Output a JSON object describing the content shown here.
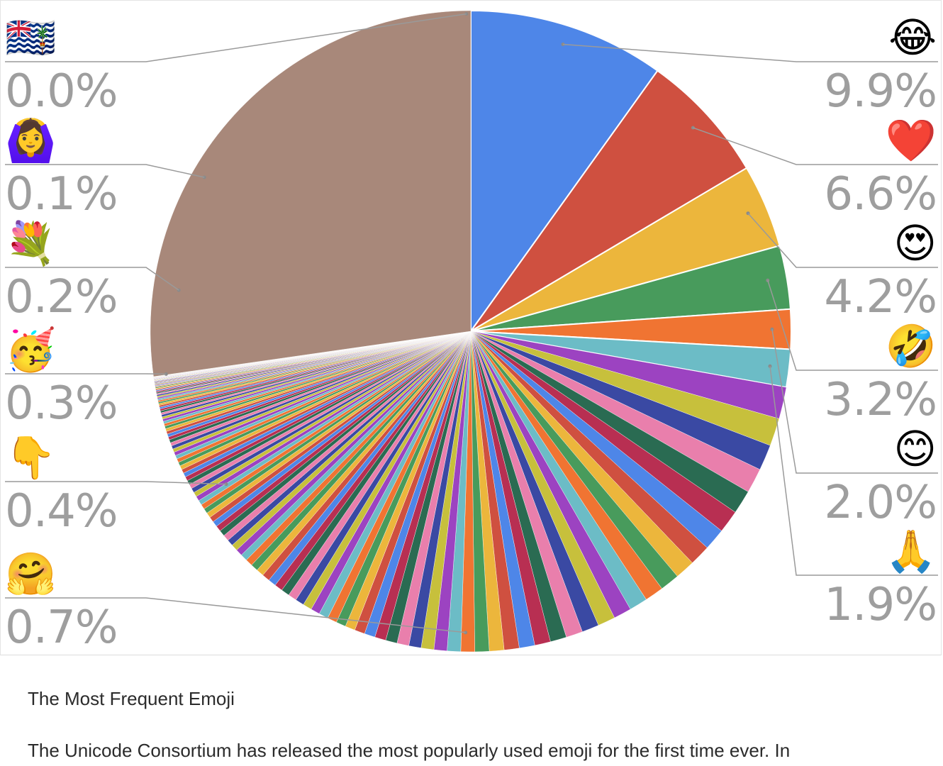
{
  "chart_data": {
    "type": "pie",
    "start": "12 o'clock",
    "direction": "clockwise",
    "slice_colors": [
      "#4e86e8",
      "#cf5040",
      "#ecb63c",
      "#489b5c",
      "#f07432",
      "#6cbcc6",
      "#9c43c1",
      "#c7c03c",
      "#3a49a3",
      "#e97fac",
      "#2a6b52",
      "#b82f52"
    ],
    "major_slices": [
      {
        "emoji": "😂",
        "value": 9.9
      },
      {
        "emoji": "❤️",
        "value": 6.6
      },
      {
        "emoji": "😍",
        "value": 4.2
      },
      {
        "emoji": "🤣",
        "value": 3.2
      },
      {
        "emoji": "😊",
        "value": 2.0
      },
      {
        "emoji": "🙏",
        "value": 1.9
      }
    ],
    "tail_slices": [
      1.6,
      1.4,
      1.3,
      1.25,
      1.2,
      1.15,
      1.1,
      1.05,
      1.0,
      0.98,
      0.95,
      0.92,
      0.9,
      0.88,
      0.86,
      0.84,
      0.82,
      0.8,
      0.78,
      0.76,
      0.74,
      0.72,
      0.7,
      0.68,
      0.66,
      0.64,
      0.62,
      0.6,
      0.58,
      0.56,
      0.54,
      0.52,
      0.5,
      0.49,
      0.48,
      0.47,
      0.46,
      0.45,
      0.44,
      0.43,
      0.42,
      0.41,
      0.4,
      0.39,
      0.38,
      0.37,
      0.36,
      0.35,
      0.34,
      0.33,
      0.32,
      0.31,
      0.3,
      0.29,
      0.28,
      0.27,
      0.26,
      0.25,
      0.25,
      0.24,
      0.24,
      0.23,
      0.23,
      0.22,
      0.22,
      0.21,
      0.21,
      0.2,
      0.2,
      0.19,
      0.19,
      0.18,
      0.18,
      0.17,
      0.17,
      0.16,
      0.16,
      0.15,
      0.15,
      0.14,
      0.14,
      0.13,
      0.13,
      0.12,
      0.12,
      0.11,
      0.11,
      0.1,
      0.1,
      0.1,
      0.09,
      0.09,
      0.09,
      0.08,
      0.08,
      0.08,
      0.07,
      0.07,
      0.07,
      0.06,
      0.06,
      0.06,
      0.05,
      0.05,
      0.05,
      0.05,
      0.04,
      0.04,
      0.04,
      0.04,
      0.03,
      0.03,
      0.03,
      0.03,
      0.03,
      0.02,
      0.02,
      0.02,
      0.02,
      0.02,
      0.02,
      0.01,
      0.01,
      0.01,
      0.01,
      0.01,
      0.01,
      0.01,
      0.01,
      0.01,
      0.01,
      0.01
    ],
    "tail_fill": "#a8887a",
    "right_labels": [
      {
        "emoji": "😂",
        "label": "9.9%"
      },
      {
        "emoji": "❤️",
        "label": "6.6%"
      },
      {
        "emoji": "😍",
        "label": "4.2%"
      },
      {
        "emoji": "🤣",
        "label": "3.2%"
      },
      {
        "emoji": "😊",
        "label": "2.0%"
      },
      {
        "emoji": "🙏",
        "label": "1.9%"
      }
    ],
    "left_labels": [
      {
        "emoji": "🇮🇴",
        "label": "0.0%"
      },
      {
        "emoji": "🙆‍♀️",
        "label": "0.1%"
      },
      {
        "emoji": "💐",
        "label": "0.2%"
      },
      {
        "emoji": "🥳",
        "label": "0.3%"
      },
      {
        "emoji": "👇",
        "label": "0.4%"
      },
      {
        "emoji": "🤗",
        "label": "0.7%"
      }
    ]
  },
  "caption": {
    "title": "The Most Frequent Emoji",
    "text": "The Unicode Consortium has released the most popularly used emoji for the first time ever. In"
  }
}
